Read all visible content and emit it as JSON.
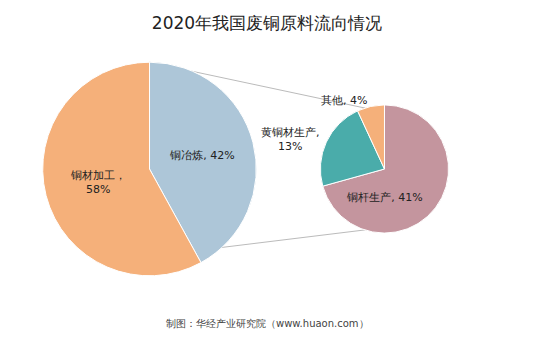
{
  "chart_data": [
    {
      "type": "pie",
      "title": "2020年我国废铜原料流向情况",
      "values": [
        42,
        58
      ],
      "value_labels": [
        "铜冶炼, 42%",
        "铜材加工，\n58%"
      ],
      "colors": [
        "#adc6d8",
        "#f5b07a"
      ],
      "data_labels": true,
      "annotations": [
        "制图：华经产业研究院（www.huaon.com）"
      ]
    },
    {
      "type": "pie",
      "values": [
        41,
        13,
        4
      ],
      "value_labels": [
        "铜杆生产, 41%",
        "黄铜材生产,\n13%",
        "其他, 4%"
      ],
      "colors": [
        "#c4959e",
        "#4aacaa",
        "#f5b07a"
      ],
      "data_labels": true
    }
  ]
}
